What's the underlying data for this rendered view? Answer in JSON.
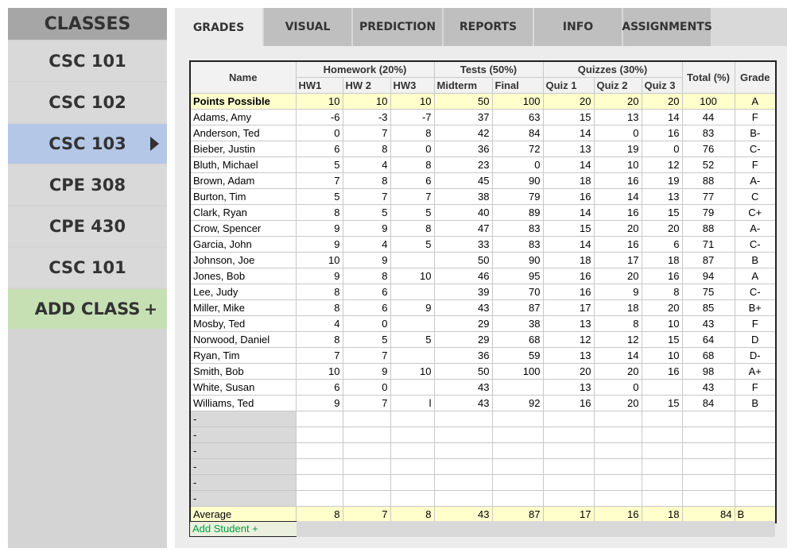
{
  "sidebar": {
    "title": "CLASSES",
    "classes": [
      "CSC 101",
      "CSC 102",
      "CSC 103",
      "CPE 308",
      "CPE 430",
      "CSC 101"
    ],
    "selected": 2,
    "add_class": "ADD CLASS",
    "add_class_icon": "+"
  },
  "tabs": [
    "GRADES",
    "VISUAL",
    "PREDICTION",
    "REPORTS",
    "INFO",
    "ASSIGNMENTS"
  ],
  "active_tab": 0,
  "table": {
    "name_header": "Name",
    "groups": [
      {
        "label": "Homework (20%)",
        "span": 3
      },
      {
        "label": "Tests (50%)",
        "span": 2
      },
      {
        "label": "Quizzes (30%)",
        "span": 3
      }
    ],
    "subheaders": [
      "HW1",
      "HW 2",
      "HW3",
      "Midterm",
      "Final",
      "Quiz 1",
      "Quiz 2",
      "Quiz 3"
    ],
    "total_header": "Total (%)",
    "grade_header": "Grade",
    "points_possible": [
      "Points Possible",
      10,
      10,
      10,
      50,
      100,
      20,
      20,
      20,
      100,
      "A"
    ],
    "rows": [
      [
        "Adams, Amy",
        -6,
        -3,
        -7,
        37,
        63,
        15,
        13,
        14,
        44,
        "F"
      ],
      [
        "Anderson, Ted",
        0,
        7,
        8,
        42,
        84,
        14,
        0,
        16,
        83,
        "B-"
      ],
      [
        "Bieber, Justin",
        6,
        8,
        0,
        36,
        72,
        13,
        19,
        0,
        76,
        "C-"
      ],
      [
        "Bluth, Michael",
        5,
        4,
        8,
        23,
        0,
        14,
        10,
        12,
        52,
        "F"
      ],
      [
        "Brown, Adam",
        7,
        8,
        6,
        45,
        90,
        18,
        16,
        19,
        88,
        "A-"
      ],
      [
        "Burton, Tim",
        5,
        7,
        7,
        38,
        79,
        16,
        14,
        13,
        77,
        "C"
      ],
      [
        "Clark, Ryan",
        8,
        5,
        5,
        40,
        89,
        14,
        16,
        15,
        79,
        "C+"
      ],
      [
        "Crow, Spencer",
        9,
        9,
        8,
        47,
        83,
        15,
        20,
        20,
        88,
        "A-"
      ],
      [
        "Garcia, John",
        9,
        4,
        5,
        33,
        83,
        14,
        16,
        6,
        71,
        "C-"
      ],
      [
        "Johnson, Joe",
        10,
        9,
        null,
        50,
        90,
        18,
        17,
        18,
        87,
        "B"
      ],
      [
        "Jones, Bob",
        9,
        8,
        10,
        46,
        95,
        16,
        20,
        16,
        94,
        "A"
      ],
      [
        "Lee, Judy",
        8,
        6,
        null,
        39,
        70,
        16,
        9,
        8,
        75,
        "C-"
      ],
      [
        "Miller, Mike",
        8,
        6,
        9,
        43,
        87,
        17,
        18,
        20,
        85,
        "B+"
      ],
      [
        "Mosby, Ted",
        4,
        0,
        null,
        29,
        38,
        13,
        8,
        10,
        43,
        "F"
      ],
      [
        "Norwood, Daniel",
        8,
        5,
        5,
        29,
        68,
        12,
        12,
        15,
        64,
        "D"
      ],
      [
        "Ryan, Tim",
        7,
        7,
        null,
        36,
        59,
        13,
        14,
        10,
        68,
        "D-"
      ],
      [
        "Smith, Bob",
        10,
        9,
        10,
        50,
        100,
        20,
        20,
        16,
        98,
        "A+"
      ],
      [
        "White, Susan",
        6,
        0,
        null,
        43,
        null,
        13,
        0,
        null,
        43,
        "F"
      ],
      [
        "Williams, Ted",
        9,
        7,
        "l",
        43,
        92,
        16,
        20,
        15,
        84,
        "B"
      ],
      [
        "-"
      ],
      [
        "-"
      ],
      [
        "-"
      ],
      [
        "-"
      ],
      [
        "-"
      ],
      [
        "-"
      ]
    ],
    "average": [
      "Average",
      8,
      7,
      8,
      43,
      87,
      17,
      16,
      18,
      84,
      "B"
    ],
    "add_student": "Add Student +"
  }
}
